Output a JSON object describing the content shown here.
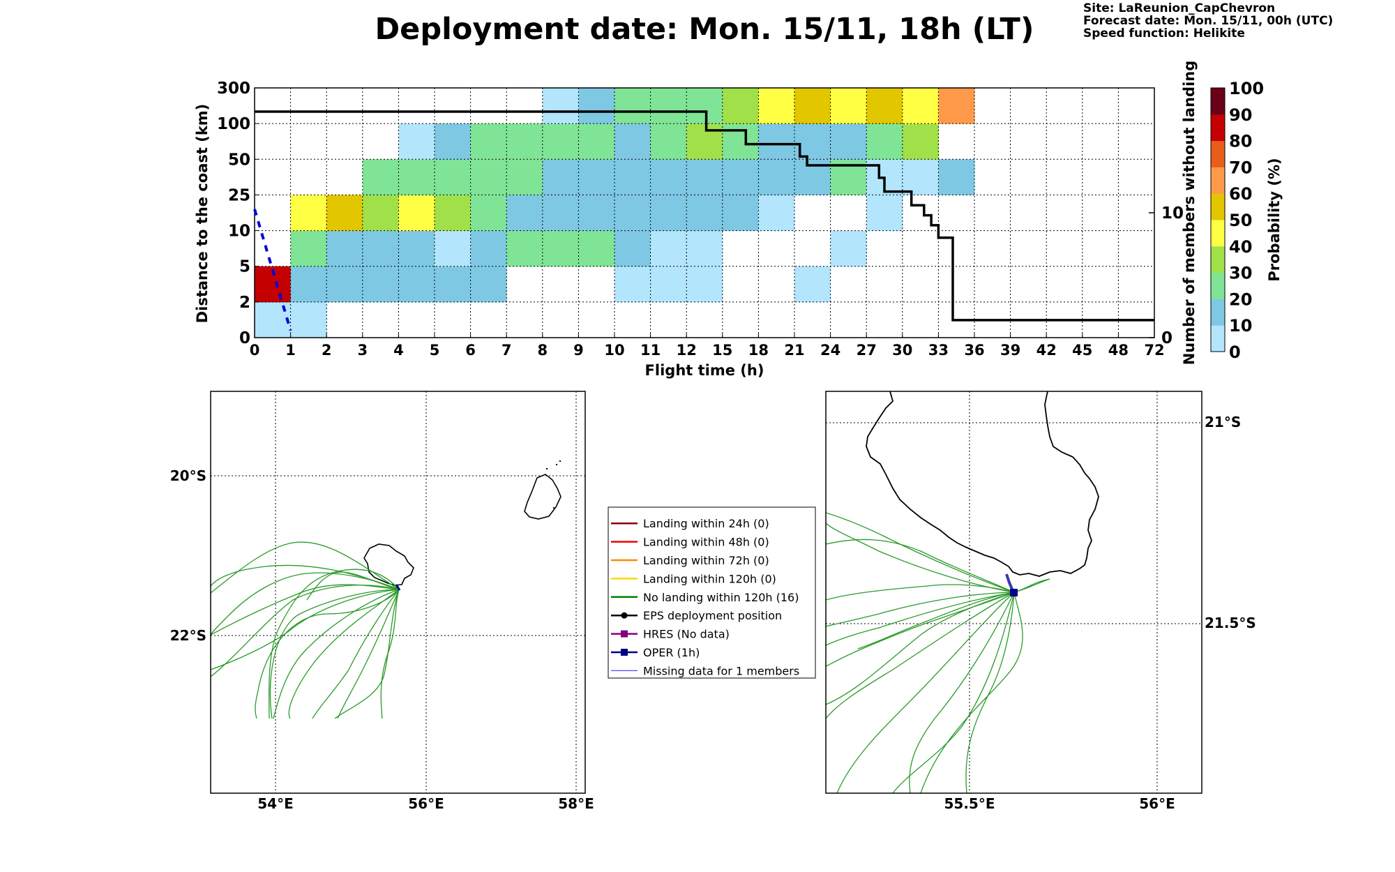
{
  "title": "Deployment date: Mon. 15/11, 18h (LT)",
  "info": {
    "site": "Site: LaReunion_CapChevron",
    "forecast": "Forecast date: Mon. 15/11, 00h (UTC)",
    "speed": "Speed function: Helikite"
  },
  "chart_data": [
    {
      "type": "heatmap",
      "xlabel": "Flight time (h)",
      "ylabel": "Distance to the coast (km)",
      "y2label": "Number of members without landing",
      "colorbar_label": "Probability (%)",
      "x_tick_labels": [
        "0",
        "1",
        "2",
        "3",
        "4",
        "5",
        "6",
        "7",
        "8",
        "9",
        "10",
        "11",
        "12",
        "15",
        "18",
        "21",
        "24",
        "27",
        "30",
        "33",
        "36",
        "39",
        "42",
        "45",
        "48",
        "72"
      ],
      "y_tick_labels": [
        "0",
        "2",
        "5",
        "10",
        "25",
        "50",
        "100",
        "300"
      ],
      "y2_tick_labels": [
        "0",
        "10"
      ],
      "y2_range": [
        0,
        20
      ],
      "colorbar_ticks": [
        "0",
        "10",
        "20",
        "30",
        "40",
        "50",
        "60",
        "70",
        "80",
        "90",
        "100"
      ],
      "colorbar_colors": [
        "#b3e5fc",
        "#7ec8e3",
        "#80e497",
        "#a2e04a",
        "#ffff44",
        "#e2c600",
        "#ff9a4a",
        "#e85d1a",
        "#c40000",
        "#6b0018"
      ],
      "grid": true,
      "cells_note": "cells: [column_index, row_index, probability_bin]",
      "cells": [
        [
          0,
          0,
          0
        ],
        [
          1,
          0,
          0
        ],
        [
          0,
          1,
          8
        ],
        [
          1,
          1,
          1
        ],
        [
          2,
          1,
          1
        ],
        [
          3,
          1,
          1
        ],
        [
          4,
          1,
          1
        ],
        [
          5,
          1,
          1
        ],
        [
          6,
          1,
          1
        ],
        [
          10,
          1,
          0
        ],
        [
          11,
          1,
          0
        ],
        [
          12,
          1,
          0
        ],
        [
          15,
          1,
          0
        ],
        [
          1,
          2,
          2
        ],
        [
          2,
          2,
          1
        ],
        [
          3,
          2,
          1
        ],
        [
          4,
          2,
          1
        ],
        [
          5,
          2,
          0
        ],
        [
          6,
          2,
          1
        ],
        [
          7,
          2,
          2
        ],
        [
          8,
          2,
          2
        ],
        [
          9,
          2,
          2
        ],
        [
          10,
          2,
          1
        ],
        [
          11,
          2,
          0
        ],
        [
          12,
          2,
          0
        ],
        [
          16,
          2,
          0
        ],
        [
          1,
          3,
          4
        ],
        [
          2,
          3,
          5
        ],
        [
          3,
          3,
          3
        ],
        [
          4,
          3,
          4
        ],
        [
          5,
          3,
          3
        ],
        [
          6,
          3,
          2
        ],
        [
          7,
          3,
          1
        ],
        [
          8,
          3,
          1
        ],
        [
          9,
          3,
          1
        ],
        [
          10,
          3,
          1
        ],
        [
          11,
          3,
          1
        ],
        [
          12,
          3,
          1
        ],
        [
          13,
          3,
          1
        ],
        [
          14,
          3,
          0
        ],
        [
          17,
          3,
          0
        ],
        [
          3,
          4,
          2
        ],
        [
          4,
          4,
          2
        ],
        [
          5,
          4,
          2
        ],
        [
          6,
          4,
          2
        ],
        [
          7,
          4,
          2
        ],
        [
          8,
          4,
          1
        ],
        [
          9,
          4,
          1
        ],
        [
          10,
          4,
          1
        ],
        [
          11,
          4,
          1
        ],
        [
          12,
          4,
          1
        ],
        [
          13,
          4,
          1
        ],
        [
          14,
          4,
          1
        ],
        [
          15,
          4,
          1
        ],
        [
          16,
          4,
          2
        ],
        [
          17,
          4,
          0
        ],
        [
          18,
          4,
          0
        ],
        [
          19,
          4,
          1
        ],
        [
          4,
          5,
          0
        ],
        [
          5,
          5,
          1
        ],
        [
          6,
          5,
          2
        ],
        [
          7,
          5,
          2
        ],
        [
          8,
          5,
          2
        ],
        [
          9,
          5,
          2
        ],
        [
          10,
          5,
          1
        ],
        [
          11,
          5,
          2
        ],
        [
          12,
          5,
          3
        ],
        [
          13,
          5,
          2
        ],
        [
          14,
          5,
          1
        ],
        [
          15,
          5,
          1
        ],
        [
          16,
          5,
          1
        ],
        [
          17,
          5,
          2
        ],
        [
          18,
          5,
          3
        ],
        [
          8,
          6,
          0
        ],
        [
          9,
          6,
          1
        ],
        [
          10,
          6,
          2
        ],
        [
          11,
          6,
          2
        ],
        [
          12,
          6,
          2
        ],
        [
          13,
          6,
          3
        ],
        [
          14,
          6,
          4
        ],
        [
          15,
          6,
          5
        ],
        [
          16,
          6,
          4
        ],
        [
          17,
          6,
          5
        ],
        [
          18,
          6,
          4
        ],
        [
          19,
          6,
          6
        ]
      ],
      "members_step_note": "[column position, members]",
      "members_step": [
        [
          0,
          18.1
        ],
        [
          12.55,
          18.1
        ],
        [
          12.55,
          16.6
        ],
        [
          13.65,
          16.6
        ],
        [
          13.65,
          15.5
        ],
        [
          15.15,
          15.5
        ],
        [
          15.15,
          14.5
        ],
        [
          15.35,
          14.5
        ],
        [
          15.35,
          13.8
        ],
        [
          17.35,
          13.8
        ],
        [
          17.35,
          12.8
        ],
        [
          17.5,
          12.8
        ],
        [
          17.5,
          11.7
        ],
        [
          18.25,
          11.7
        ],
        [
          18.25,
          10.6
        ],
        [
          18.6,
          10.6
        ],
        [
          18.6,
          9.8
        ],
        [
          18.8,
          9.8
        ],
        [
          18.8,
          9.0
        ],
        [
          19.0,
          9.0
        ],
        [
          19.0,
          8.0
        ],
        [
          19.4,
          8.0
        ],
        [
          19.4,
          7.6
        ],
        [
          19.4,
          7.6
        ],
        [
          19.4,
          1.4
        ],
        [
          25,
          1.4
        ]
      ],
      "oper_line": [
        [
          0,
          3.6
        ],
        [
          1.0,
          0.2
        ]
      ]
    },
    {
      "type": "map",
      "x_tick_labels": [
        "54°E",
        "56°E",
        "58°E"
      ],
      "y_tick_labels": [
        "20°S",
        "22°S"
      ]
    },
    {
      "type": "map",
      "x_tick_labels": [
        "55.5°E",
        "56°E"
      ],
      "y_tick_labels": [
        "21°S",
        "21.5°S"
      ]
    }
  ],
  "legend": [
    {
      "label": "Landing within 24h (0)",
      "color": "#8b0000",
      "marker": "none"
    },
    {
      "label": "Landing within 48h (0)",
      "color": "#ee0000",
      "marker": "none"
    },
    {
      "label": "Landing within 72h (0)",
      "color": "#ff8c00",
      "marker": "none"
    },
    {
      "label": "Landing within 120h (0)",
      "color": "#ffd700",
      "marker": "none"
    },
    {
      "label": "No landing within 120h (16)",
      "color": "#008000",
      "marker": "none"
    },
    {
      "label": "EPS deployment position",
      "color": "#000000",
      "marker": "circle"
    },
    {
      "label": "HRES (No data)",
      "color": "#800080",
      "marker": "square"
    },
    {
      "label": "OPER (1h)",
      "color": "#000080",
      "marker": "square"
    },
    {
      "label": "Missing data for 1 members",
      "color": "#4b4bff",
      "marker": "thin"
    }
  ]
}
